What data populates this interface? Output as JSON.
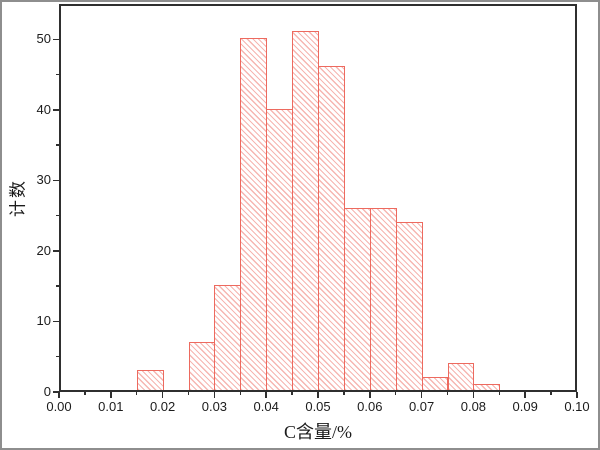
{
  "figure": {
    "frame_color": "#8e8e8e",
    "background_color": "#ffffff"
  },
  "chart_data": {
    "type": "bar",
    "subtype": "histogram",
    "title": "",
    "xlabel": "C含量/%",
    "ylabel": "计数",
    "xlim": [
      0.0,
      0.1
    ],
    "ylim": [
      0,
      55
    ],
    "grid": false,
    "legend": null,
    "bin_width": 0.005,
    "bin_starts": [
      0.015,
      0.02,
      0.025,
      0.03,
      0.035,
      0.04,
      0.045,
      0.05,
      0.055,
      0.06,
      0.065,
      0.07,
      0.075,
      0.08
    ],
    "counts": [
      3,
      0,
      7,
      15,
      50,
      40,
      51,
      46,
      26,
      26,
      24,
      2,
      4,
      1
    ],
    "x_major_ticks": [
      0.0,
      0.01,
      0.02,
      0.03,
      0.04,
      0.05,
      0.06,
      0.07,
      0.08,
      0.09,
      0.1
    ],
    "x_tick_labels": [
      "0.00",
      "0.01",
      "0.02",
      "0.03",
      "0.04",
      "0.05",
      "0.06",
      "0.07",
      "0.08",
      "0.09",
      "0.10"
    ],
    "x_minor_ticks": [
      0.005,
      0.015,
      0.025,
      0.035,
      0.045,
      0.055,
      0.065,
      0.075,
      0.085,
      0.095
    ],
    "y_major_ticks": [
      0,
      10,
      20,
      30,
      40,
      50
    ],
    "y_tick_labels": [
      "0",
      "10",
      "20",
      "30",
      "40",
      "50"
    ],
    "y_minor_ticks": [
      5,
      15,
      25,
      35,
      45
    ],
    "bar_edge_color": "#ed6a5f",
    "bar_hatch_color": "rgba(238,110,100,0.5)",
    "hatch_direction": "\\",
    "axis_color": "#2f2f2f",
    "tick_label_color": "#1c1c1c"
  }
}
